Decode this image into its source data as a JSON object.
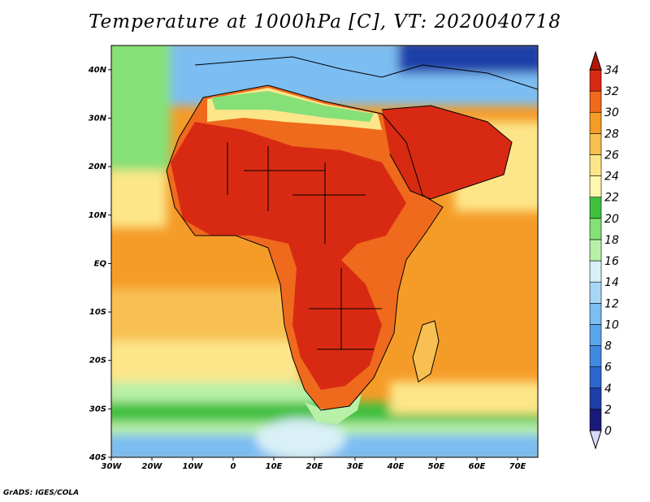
{
  "title": "Temperature at 1000hPa [C], VT: 2020040718",
  "footer": "GrADS: IGES/COLA",
  "map": {
    "lon_range": [
      -30,
      75
    ],
    "lat_range": [
      -40,
      45
    ],
    "lon_ticks": [
      {
        "value": -30,
        "label": "30W"
      },
      {
        "value": -20,
        "label": "20W"
      },
      {
        "value": -10,
        "label": "10W"
      },
      {
        "value": 0,
        "label": "0"
      },
      {
        "value": 10,
        "label": "10E"
      },
      {
        "value": 20,
        "label": "20E"
      },
      {
        "value": 30,
        "label": "30E"
      },
      {
        "value": 40,
        "label": "40E"
      },
      {
        "value": 50,
        "label": "50E"
      },
      {
        "value": 60,
        "label": "60E"
      },
      {
        "value": 70,
        "label": "70E"
      }
    ],
    "lat_ticks": [
      {
        "value": 40,
        "label": "40N"
      },
      {
        "value": 30,
        "label": "30N"
      },
      {
        "value": 20,
        "label": "20N"
      },
      {
        "value": 10,
        "label": "10N"
      },
      {
        "value": 0,
        "label": "EQ"
      },
      {
        "value": -10,
        "label": "10S"
      },
      {
        "value": -20,
        "label": "20S"
      },
      {
        "value": -30,
        "label": "30S"
      },
      {
        "value": -40,
        "label": "40S"
      }
    ]
  },
  "colorbar": {
    "levels": [
      0,
      2,
      4,
      6,
      8,
      10,
      12,
      14,
      16,
      18,
      20,
      22,
      24,
      26,
      28,
      30,
      32,
      34
    ],
    "colors": [
      "#d8d8f8",
      "#1a1a7a",
      "#1e3fa8",
      "#2d66cc",
      "#3f8ae0",
      "#5aa5ec",
      "#7cbdf2",
      "#a8d6f6",
      "#d8f0f6",
      "#b8f0a8",
      "#86e078",
      "#3fc040",
      "#fff6b0",
      "#fde68a",
      "#f8c052",
      "#f59c28",
      "#ef6a1c",
      "#d82a12",
      "#b41608"
    ]
  }
}
